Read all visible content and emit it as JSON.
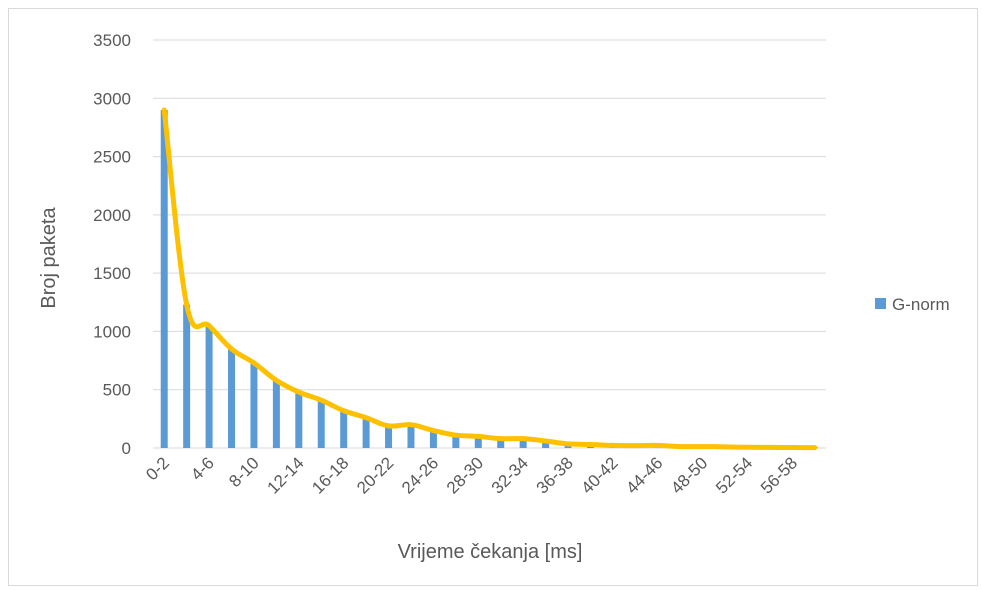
{
  "chart_data": {
    "type": "bar",
    "title": "",
    "xlabel": "Vrijeme čekanja [ms]",
    "ylabel": "Broj paketa",
    "ylim": [
      0,
      3500
    ],
    "yticks": [
      0,
      500,
      1000,
      1500,
      2000,
      2500,
      3000,
      3500
    ],
    "grid": true,
    "legend_position": "right",
    "categories": [
      "0-2",
      "2-4",
      "4-6",
      "6-8",
      "8-10",
      "10-12",
      "12-14",
      "14-16",
      "16-18",
      "18-20",
      "20-22",
      "22-24",
      "24-26",
      "26-28",
      "28-30",
      "30-32",
      "32-34",
      "34-36",
      "36-38",
      "38-40",
      "40-42",
      "42-44",
      "44-46",
      "46-48",
      "48-50",
      "50-52",
      "52-54",
      "54-56",
      "56-58",
      "58-60"
    ],
    "series": [
      {
        "name": "G-norm",
        "color": "#5b9bd5",
        "values": [
          2900,
          1230,
          1050,
          850,
          730,
          580,
          480,
          410,
          320,
          260,
          190,
          190,
          150,
          110,
          100,
          80,
          80,
          60,
          30,
          30,
          20,
          20,
          20,
          10,
          10,
          10,
          5,
          5,
          5,
          5
        ]
      }
    ],
    "trendline": {
      "color": "#ffc000",
      "values": [
        2900,
        1230,
        1050,
        850,
        730,
        580,
        480,
        410,
        320,
        260,
        190,
        200,
        150,
        110,
        100,
        80,
        80,
        60,
        35,
        30,
        22,
        20,
        22,
        12,
        12,
        10,
        6,
        5,
        4,
        3
      ]
    }
  }
}
